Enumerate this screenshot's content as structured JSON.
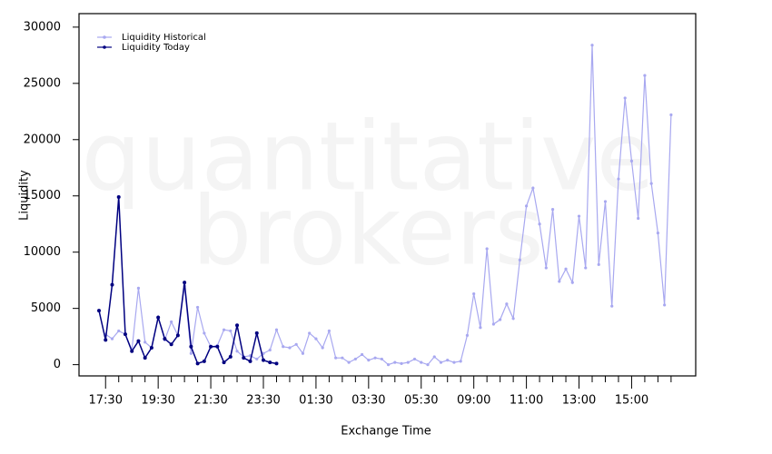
{
  "chart_data": {
    "type": "line",
    "watermark": [
      "quantitative",
      "brokers"
    ],
    "x_label": "Exchange Time",
    "y_label": "Liquidity",
    "categories": [
      null,
      "17:30",
      null,
      null,
      null,
      null,
      null,
      null,
      null,
      "19:30",
      null,
      null,
      null,
      null,
      null,
      null,
      null,
      "21:30",
      null,
      null,
      null,
      null,
      null,
      null,
      null,
      "23:30",
      null,
      null,
      null,
      null,
      null,
      null,
      null,
      "01:30",
      null,
      null,
      null,
      null,
      null,
      null,
      null,
      "03:30",
      null,
      null,
      null,
      null,
      null,
      null,
      null,
      "05:30",
      null,
      null,
      null,
      null,
      null,
      null,
      null,
      "09:00",
      null,
      null,
      null,
      null,
      null,
      null,
      null,
      "11:00",
      null,
      null,
      null,
      null,
      null,
      null,
      null,
      "13:00",
      null,
      null,
      null,
      null,
      null,
      null,
      null,
      "15:00",
      null,
      null,
      null,
      null,
      null,
      null
    ],
    "series": [
      {
        "name": "Liquidity Historical",
        "color": "#a8a8f0",
        "values": [
          null,
          2700,
          2300,
          3000,
          2700,
          1300,
          6800,
          2000,
          1500,
          4200,
          2200,
          3800,
          2600,
          7000,
          1000,
          5100,
          2800,
          1600,
          1700,
          3100,
          3000,
          1200,
          700,
          800,
          500,
          1000,
          1300,
          3100,
          1600,
          1500,
          1800,
          1000,
          2800,
          2300,
          1500,
          3000,
          600,
          600,
          200,
          500,
          900,
          400,
          600,
          500,
          0,
          200,
          100,
          200,
          500,
          200,
          0,
          700,
          200,
          400,
          200,
          300,
          2600,
          6300,
          3300,
          10300,
          3600,
          4000,
          5400,
          4100,
          9300,
          14100,
          15700,
          12500,
          8600,
          13800,
          7400,
          8500,
          7300,
          13200,
          8600,
          28400,
          8900,
          14500,
          5200,
          16500,
          23700,
          18100,
          13000,
          25700,
          16100,
          11700,
          5300,
          22200
        ]
      },
      {
        "name": "Liquidity Today",
        "color": "#000080",
        "values": [
          4800,
          2200,
          7100,
          14900,
          2700,
          1200,
          2100,
          600,
          1500,
          4200,
          2300,
          1800,
          2600,
          7300,
          1600,
          100,
          300,
          1600,
          1600,
          200,
          700,
          3500,
          600,
          300,
          2800,
          400,
          200,
          100,
          null,
          null,
          null,
          null,
          null,
          null,
          null,
          null,
          null,
          null,
          null,
          null,
          null,
          null,
          null,
          null,
          null,
          null,
          null,
          null,
          null,
          null,
          null,
          null,
          null,
          null,
          null,
          null,
          null,
          null,
          null,
          null,
          null,
          null,
          null,
          null,
          null,
          null,
          null,
          null,
          null,
          null,
          null,
          null,
          null,
          null,
          null,
          null,
          null,
          null,
          null,
          null,
          null,
          null,
          null,
          null,
          null,
          null,
          null,
          null
        ]
      }
    ],
    "ylim": [
      -1000,
      31200
    ],
    "yticks": [
      0,
      5000,
      10000,
      15000,
      20000,
      25000,
      30000
    ],
    "legend": "top-left"
  }
}
